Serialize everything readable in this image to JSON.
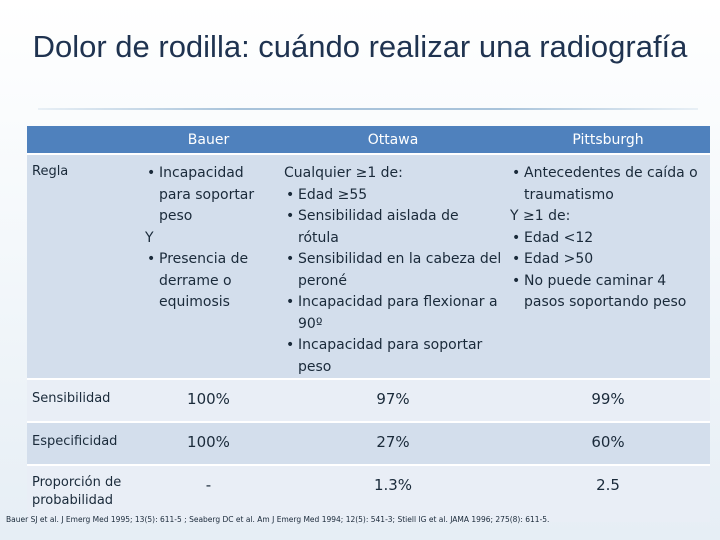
{
  "title": "Dolor de rodilla: cuándo realizar una radiografía",
  "table": {
    "headers": [
      "",
      "Bauer",
      "Ottawa",
      "Pittsburgh"
    ],
    "rule_label": "Regla",
    "bauer": {
      "items_a": [
        "Incapacidad para soportar peso"
      ],
      "connector": "Y",
      "items_b": [
        "Presencia de derrame o equimosis"
      ]
    },
    "ottawa": {
      "intro": "Cualquier ≥1 de:",
      "items": [
        "Edad ≥55",
        "Sensibilidad aislada de rótula",
        "Sensibilidad en la cabeza del peroné",
        "Incapacidad para flexionar a 90º",
        "Incapacidad para soportar peso"
      ]
    },
    "pittsburgh": {
      "items_a": [
        "Antecedentes de caída o traumatismo"
      ],
      "connector": "Y ≥1 de:",
      "items_b": [
        "Edad <12",
        "Edad >50",
        "No puede caminar 4 pasos soportando peso"
      ]
    },
    "rows": [
      {
        "label": "Sensibilidad",
        "values": [
          "100%",
          "97%",
          "99%"
        ]
      },
      {
        "label": "Especificidad",
        "values": [
          "100%",
          "27%",
          "60%"
        ]
      },
      {
        "label": "Proporción de probabilidad",
        "values": [
          "-",
          "1.3%",
          "2.5"
        ]
      }
    ]
  },
  "citation": "Bauer SJ et al. J Emerg Med 1995; 13(5): 611-5 ; Seaberg DC et al. Am J Emerg Med 1994; 12(5): 541-3; Stiell IG et al. JAMA 1996; 275(8): 611-5."
}
